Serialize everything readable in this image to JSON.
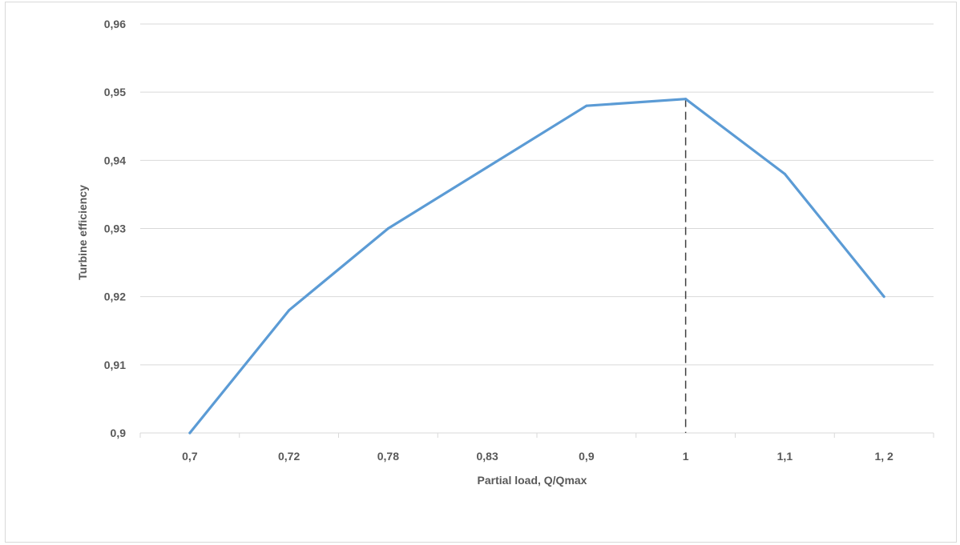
{
  "chart_data": {
    "type": "line",
    "categories": [
      "0,7",
      "0,72",
      "0,78",
      "0,83",
      "0,9",
      "1",
      "1,1",
      "1, 2"
    ],
    "series": [
      {
        "values": [
          0.9,
          0.918,
          0.93,
          0.939,
          0.948,
          0.949,
          0.938,
          0.92
        ]
      }
    ],
    "xlabel": "Partial load, Q/Qmax",
    "ylabel": "Turbine efficiency",
    "ylim": [
      0.9,
      0.96
    ],
    "yticks": [
      0.9,
      0.91,
      0.92,
      0.93,
      0.94,
      0.95,
      0.96
    ],
    "ytick_labels": [
      "0,9",
      "0,91",
      "0,92",
      "0,93",
      "0,94",
      "0,95",
      "0,96"
    ],
    "grid": "horizontal",
    "annotations": [
      {
        "type": "dashed-vertical-line",
        "category": "1",
        "y_from": 0.9,
        "y_to": 0.949
      }
    ],
    "colors": {
      "line": "#5b9bd5",
      "grid": "#d9d9d9",
      "marker_line": "#404040",
      "text": "#595959"
    }
  }
}
